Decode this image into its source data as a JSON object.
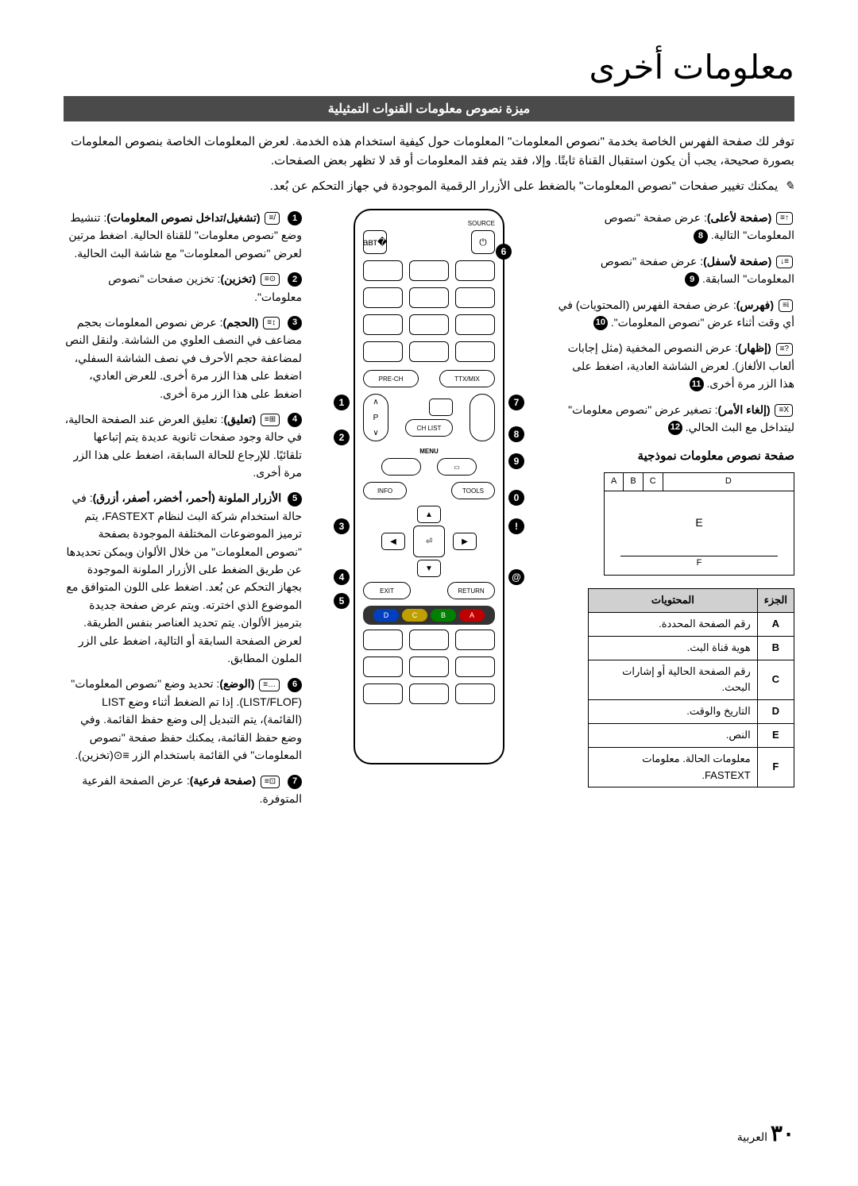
{
  "page_title": "معلومات أخرى",
  "section_header": "ميزة نصوص معلومات القنوات التمثيلية",
  "intro_text": "توفر لك صفحة الفهرس الخاصة بخدمة \"نصوص المعلومات\" المعلومات حول كيفية استخدام هذه الخدمة. لعرض المعلومات الخاصة بنصوص المعلومات بصورة صحيحة، يجب أن يكون استقبال القناة ثابتًا. وإلا، فقد يتم فقد المعلومات أو قد لا تظهر بعض الصفحات.",
  "note_text": "يمكنك تغيير صفحات \"نصوص المعلومات\" بالضغط على الأزرار الرقمية الموجودة في جهاز التحكم عن بُعد.",
  "right_items": [
    {
      "num": "8",
      "icon": "≡↑",
      "label": "(صفحة لأعلى)",
      "desc": ": عرض صفحة \"نصوص المعلومات\" التالية."
    },
    {
      "num": "9",
      "icon": "↓≡",
      "label": "(صفحة لأسفل)",
      "desc": ": عرض صفحة \"نصوص المعلومات\" السابقة."
    },
    {
      "num": "10",
      "icon": "≡i",
      "label": "(فهرس)",
      "desc": ": عرض صفحة الفهرس (المحتويات) في أي وقت أثناء عرض \"نصوص المعلومات\"."
    },
    {
      "num": "11",
      "icon": "≡?",
      "label": "(إظهار)",
      "desc": ": عرض النصوص المخفية (مثل إجابات ألعاب الألغاز). لعرض الشاشة العادية، اضغط على هذا الزر مرة أخرى."
    },
    {
      "num": "12",
      "icon": "≡X",
      "label": "(إلغاء الأمر)",
      "desc": ": تصغير عرض \"نصوص معلومات\" ليتداخل مع البث الحالي."
    }
  ],
  "left_items": [
    {
      "num": "1",
      "icon": "≡/",
      "label": "(تشغيل/تداخل نصوص المعلومات)",
      "desc": ": تنشيط وضع \"نصوص معلومات\" للقناة الحالية. اضغط مرتين لعرض \"نصوص المعلومات\" مع شاشة البث الحالية."
    },
    {
      "num": "2",
      "icon": "≡⊙",
      "label": "(تخزين)",
      "desc": ": تخزين صفحات \"نصوص معلومات\"."
    },
    {
      "num": "3",
      "icon": "≡↕",
      "label": "(الحجم)",
      "desc": ": عرض نصوص المعلومات بحجم مضاعف في النصف العلوي من الشاشة. ولنقل النص لمضاعفة حجم الأحرف في نصف الشاشة السفلي، اضغط على هذا الزر مرة أخرى. للعرض العادي، اضغط على هذا الزر مرة أخرى."
    },
    {
      "num": "4",
      "icon": "≡⊞",
      "label": "(تعليق)",
      "desc": ": تعليق العرض عند الصفحة الحالية، في حالة وجود صفحات ثانوية عديدة يتم إتباعها تلقائيًا. للإرجاع للحالة السابقة، اضغط على هذا الزر مرة أخرى."
    },
    {
      "num": "5",
      "icon": "",
      "label": "الأزرار الملونة (أحمر، أخضر، أصفر، أزرق)",
      "desc": ": في حالة استخدام شركة البث لنظام FASTEXT، يتم ترميز الموضوعات المختلفة الموجودة بصفحة \"نصوص المعلومات\" من خلال الألوان ويمكن تحديدها عن طريق الضغط على الأزرار الملونة الموجودة بجهاز التحكم عن بُعد. اضغط على اللون المتوافق مع الموضوع الذي اخترته. ويتم عرض صفحة جديدة بترميز الألوان. يتم تحديد العناصر بنفس الطريقة. لعرض الصفحة السابقة أو التالية، اضغط على الزر الملون المطابق."
    },
    {
      "num": "6",
      "icon": "≡…",
      "label": "(الوضع)",
      "desc": ": تحديد وضع \"نصوص المعلومات\" (LIST/FLOF). إذا تم الضغط أثناء وضع LIST (القائمة)، يتم التبديل إلى وضع حفظ القائمة. وفي وضع حفظ القائمة، يمكنك حفظ صفحة \"نصوص المعلومات\" في القائمة باستخدام الزر ≡⊙(تخزين)."
    },
    {
      "num": "7",
      "icon": "≡⊡",
      "label": "(صفحة فرعية)",
      "desc": ": عرض الصفحة الفرعية المتوفرة."
    }
  ],
  "sample_title": "صفحة نصوص معلومات نموذجية",
  "sample_cells": {
    "A": "A",
    "B": "B",
    "C": "C",
    "D": "D",
    "E": "E",
    "F": "F"
  },
  "table": {
    "headers": {
      "part": "الجزء",
      "content": "المحتويات"
    },
    "rows": [
      {
        "part": "A",
        "content": "رقم الصفحة المحددة."
      },
      {
        "part": "B",
        "content": "هوية قناة البث."
      },
      {
        "part": "C",
        "content": "رقم الصفحة الحالية أو إشارات البحث."
      },
      {
        "part": "D",
        "content": "التاريخ والوقت."
      },
      {
        "part": "E",
        "content": "النص."
      },
      {
        "part": "F",
        "content": "معلومات الحالة. معلومات FASTEXT."
      }
    ]
  },
  "remote": {
    "source": "SOURCE",
    "ttxmix": "TTX/MIX",
    "prech": "PRE-CH",
    "chlist": "CH LIST",
    "menu": "MENU",
    "tools": "TOOLS",
    "info": "INFO",
    "return": "RETURN",
    "exit": "EXIT",
    "p": "P",
    "colors": [
      {
        "label": "A",
        "bg": "#c00000"
      },
      {
        "label": "B",
        "bg": "#008000"
      },
      {
        "label": "C",
        "bg": "#c0a000"
      },
      {
        "label": "D",
        "bg": "#0040c0"
      }
    ]
  },
  "page_number": {
    "num": "٣٠",
    "lang": "العربية"
  }
}
